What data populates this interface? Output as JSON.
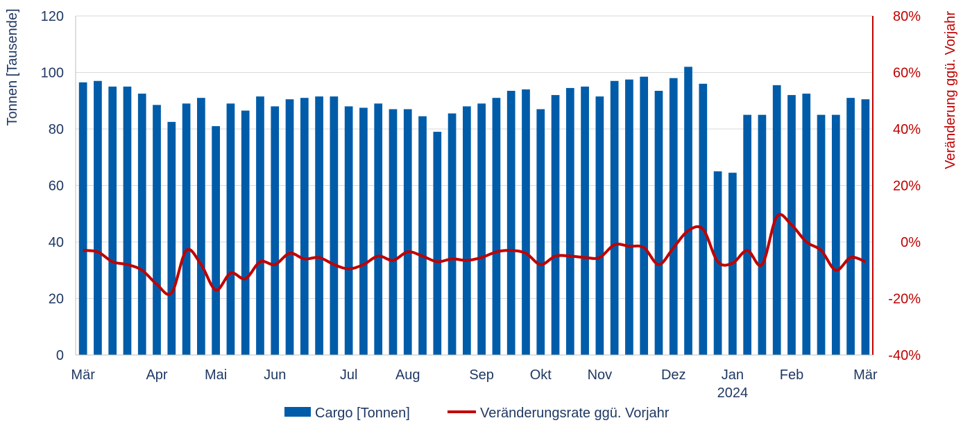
{
  "chart_data": {
    "type": "bar",
    "categories_x_labels": [
      {
        "label": "Mär",
        "index": 0
      },
      {
        "label": "Apr",
        "index": 5
      },
      {
        "label": "Mai",
        "index": 9
      },
      {
        "label": "Jun",
        "index": 13
      },
      {
        "label": "Jul",
        "index": 18
      },
      {
        "label": "Aug",
        "index": 22
      },
      {
        "label": "Sep",
        "index": 27
      },
      {
        "label": "Okt",
        "index": 31
      },
      {
        "label": "Nov",
        "index": 35
      },
      {
        "label": "Dez",
        "index": 40
      },
      {
        "label": "Jan",
        "index": 44
      },
      {
        "label": "Feb",
        "index": 48
      },
      {
        "label": "Mär",
        "index": 53
      }
    ],
    "year_label": {
      "label": "2024",
      "index": 44
    },
    "series": [
      {
        "name": "Cargo [Tonnen]",
        "type": "bar",
        "axis": "left",
        "color": "#005ca9",
        "values": [
          96.5,
          97,
          95,
          95,
          92.5,
          88.5,
          82.5,
          89,
          91,
          81,
          89,
          86.5,
          91.5,
          88,
          90.5,
          91,
          91.5,
          91.5,
          88,
          87.5,
          89,
          87,
          87,
          84.5,
          79,
          85.5,
          88,
          89,
          91,
          93.5,
          94,
          87,
          92,
          94.5,
          95,
          91.5,
          97,
          97.5,
          98.5,
          93.5,
          98,
          102,
          96,
          65,
          64.5,
          85,
          85,
          95.5,
          92,
          92.5,
          85,
          85,
          91,
          90.5
        ]
      },
      {
        "name": "Veränderungsrate ggü. Vorjahr",
        "type": "line",
        "axis": "right",
        "color": "#c00000",
        "values": [
          -3,
          -3.5,
          -7,
          -8,
          -10,
          -15,
          -18,
          -3,
          -8,
          -17,
          -11,
          -13,
          -7,
          -8,
          -4,
          -6,
          -5.5,
          -8,
          -9.5,
          -8,
          -5,
          -6.5,
          -3.5,
          -5,
          -7,
          -6,
          -6.5,
          -5.5,
          -3.5,
          -3,
          -4,
          -8,
          -5,
          -5,
          -5.5,
          -5.5,
          -1,
          -1.5,
          -2,
          -8,
          -2,
          4,
          4.5,
          -7,
          -7.5,
          -3,
          -8,
          9,
          6,
          0,
          -3,
          -10,
          -5.5,
          -7
        ]
      }
    ],
    "y_left": {
      "title": "Tonnen [Tausende]",
      "min": 0,
      "max": 120,
      "ticks": [
        "0",
        "20",
        "40",
        "60",
        "80",
        "100",
        "120"
      ]
    },
    "y_right": {
      "title": "Veränderung ggü. Vorjahr",
      "min": -40,
      "max": 80,
      "ticks": [
        "-40%",
        "-20%",
        "0%",
        "20%",
        "40%",
        "60%",
        "80%"
      ]
    },
    "grid": true,
    "legend_position": "bottom",
    "colors": {
      "left_axis_text": "#1f3864",
      "right_axis_text": "#c00000",
      "grid": "#d9d9d9"
    }
  }
}
